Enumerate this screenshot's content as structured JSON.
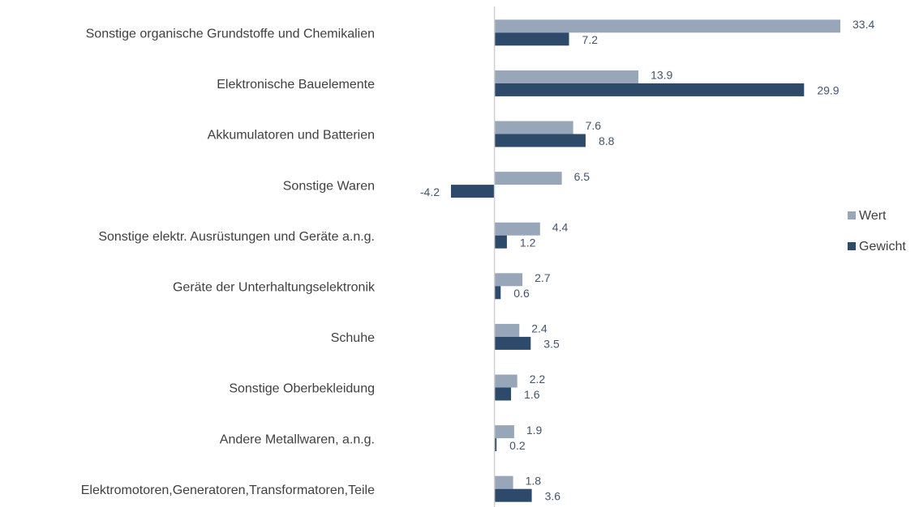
{
  "chart_data": {
    "type": "bar",
    "orientation": "horizontal",
    "categories": [
      "Sonstige organische Grundstoffe und Chemikalien",
      "Elektronische Bauelemente",
      "Akkumulatoren und Batterien",
      "Sonstige Waren",
      "Sonstige elektr. Ausrüstungen und Geräte a.n.g.",
      "Geräte der Unterhaltungselektronik",
      "Schuhe",
      "Sonstige Oberbekleidung",
      "Andere Metallwaren, a.n.g.",
      "Elektromotoren,Generatoren,Transformatoren,Teile"
    ],
    "series": [
      {
        "name": "Wert",
        "color": "#97a6b8",
        "values": [
          33.4,
          13.9,
          7.6,
          6.5,
          4.4,
          2.7,
          2.4,
          2.2,
          1.9,
          1.8
        ]
      },
      {
        "name": "Gewicht",
        "color": "#2e4a6b",
        "values": [
          7.2,
          29.9,
          8.8,
          -4.2,
          1.2,
          0.6,
          3.5,
          1.6,
          0.2,
          3.6
        ]
      }
    ],
    "legend": "right"
  }
}
